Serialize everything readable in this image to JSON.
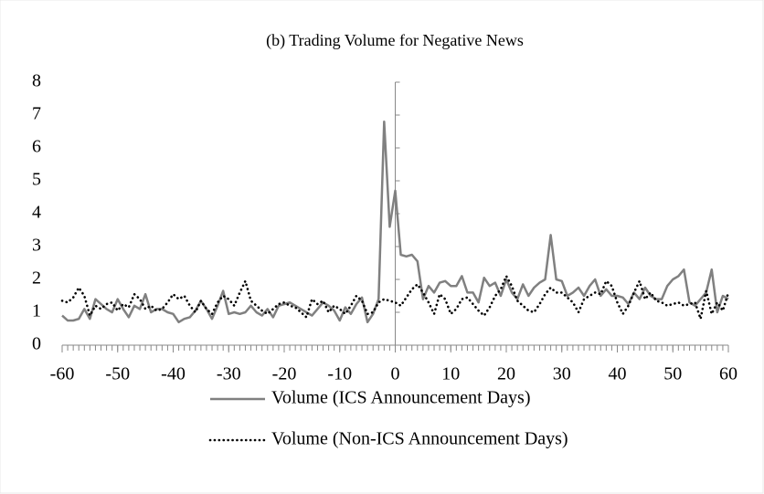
{
  "chart_data": {
    "type": "line",
    "title": "(b) Trading Volume for Negative News",
    "x": [
      -60,
      -59,
      -58,
      -57,
      -56,
      -55,
      -54,
      -53,
      -52,
      -51,
      -50,
      -49,
      -48,
      -47,
      -46,
      -45,
      -44,
      -43,
      -42,
      -41,
      -40,
      -39,
      -38,
      -37,
      -36,
      -35,
      -34,
      -33,
      -32,
      -31,
      -30,
      -29,
      -28,
      -27,
      -26,
      -25,
      -24,
      -23,
      -22,
      -21,
      -20,
      -19,
      -18,
      -17,
      -16,
      -15,
      -14,
      -13,
      -12,
      -11,
      -10,
      -9,
      -8,
      -7,
      -6,
      -5,
      -4,
      -3,
      -2,
      -1,
      0,
      1,
      2,
      3,
      4,
      5,
      6,
      7,
      8,
      9,
      10,
      11,
      12,
      13,
      14,
      15,
      16,
      17,
      18,
      19,
      20,
      21,
      22,
      23,
      24,
      25,
      26,
      27,
      28,
      29,
      30,
      31,
      32,
      33,
      34,
      35,
      36,
      37,
      38,
      39,
      40,
      41,
      42,
      43,
      44,
      45,
      46,
      47,
      48,
      49,
      50,
      51,
      52,
      53,
      54,
      55,
      56,
      57,
      58,
      59,
      60
    ],
    "series": [
      {
        "name": "Volume (ICS Announcement Days)",
        "color": "#808080",
        "style": "solid",
        "values": [
          0.9,
          0.75,
          0.75,
          0.8,
          1.1,
          0.8,
          1.4,
          1.25,
          1.1,
          1.0,
          1.4,
          1.1,
          0.85,
          1.2,
          1.1,
          1.55,
          1.0,
          1.1,
          1.1,
          1.0,
          0.95,
          0.7,
          0.8,
          0.85,
          1.05,
          1.35,
          1.1,
          0.8,
          1.2,
          1.65,
          0.95,
          1.0,
          0.95,
          1.0,
          1.2,
          1.0,
          0.9,
          1.1,
          0.85,
          1.2,
          1.25,
          1.3,
          1.2,
          1.1,
          1.0,
          0.9,
          1.1,
          1.3,
          1.2,
          1.05,
          0.75,
          1.15,
          0.95,
          1.25,
          1.45,
          0.7,
          0.95,
          1.4,
          6.8,
          3.6,
          4.7,
          2.75,
          2.7,
          2.75,
          2.55,
          1.4,
          1.8,
          1.6,
          1.9,
          1.95,
          1.8,
          1.8,
          2.1,
          1.6,
          1.6,
          1.3,
          2.05,
          1.8,
          1.9,
          1.5,
          2.0,
          1.6,
          1.4,
          1.85,
          1.5,
          1.75,
          1.9,
          2.0,
          3.35,
          2.0,
          1.95,
          1.5,
          1.6,
          1.75,
          1.5,
          1.8,
          2.0,
          1.5,
          1.7,
          1.5,
          1.5,
          1.45,
          1.25,
          1.6,
          1.4,
          1.75,
          1.5,
          1.4,
          1.4,
          1.8,
          2.0,
          2.1,
          2.3,
          1.3,
          1.2,
          1.4,
          1.6,
          2.3,
          1.0,
          1.5,
          1.4
        ]
      },
      {
        "name": "Volume (Non-ICS Announcement Days)",
        "color": "#000000",
        "style": "dotted",
        "values": [
          1.35,
          1.3,
          1.45,
          1.75,
          1.5,
          0.9,
          1.2,
          1.1,
          1.25,
          1.3,
          1.05,
          1.25,
          1.15,
          1.55,
          1.4,
          1.1,
          1.2,
          1.05,
          1.1,
          1.3,
          1.55,
          1.4,
          1.5,
          1.2,
          1.0,
          1.35,
          1.1,
          0.95,
          1.3,
          1.5,
          1.4,
          1.2,
          1.6,
          1.95,
          1.35,
          1.2,
          1.05,
          0.95,
          1.1,
          1.25,
          1.3,
          1.2,
          1.15,
          1.0,
          0.85,
          1.4,
          1.25,
          1.35,
          1.0,
          1.2,
          1.1,
          0.95,
          1.2,
          1.5,
          1.35,
          0.95,
          1.0,
          1.3,
          1.4,
          1.35,
          1.3,
          1.2,
          1.45,
          1.7,
          1.85,
          1.6,
          1.3,
          0.95,
          1.55,
          1.4,
          0.95,
          1.1,
          1.4,
          1.45,
          1.25,
          1.05,
          0.9,
          1.15,
          1.5,
          1.7,
          2.1,
          1.8,
          1.35,
          1.2,
          1.05,
          1.0,
          1.25,
          1.55,
          1.75,
          1.6,
          1.6,
          1.45,
          1.3,
          1.0,
          1.4,
          1.5,
          1.6,
          1.55,
          1.95,
          1.8,
          1.3,
          0.95,
          1.2,
          1.6,
          1.95,
          1.4,
          1.6,
          1.35,
          1.3,
          1.2,
          1.25,
          1.3,
          1.2,
          1.25,
          1.3,
          0.8,
          1.65,
          0.95,
          1.3,
          1.05,
          1.6
        ]
      }
    ],
    "xlim": [
      -60,
      60
    ],
    "xticks": [
      -60,
      -50,
      -40,
      -30,
      -20,
      -10,
      0,
      10,
      20,
      30,
      40,
      50,
      60
    ],
    "ylim": [
      0,
      8
    ],
    "yticks": [
      0,
      1,
      2,
      3,
      4,
      5,
      6,
      7,
      8
    ]
  }
}
